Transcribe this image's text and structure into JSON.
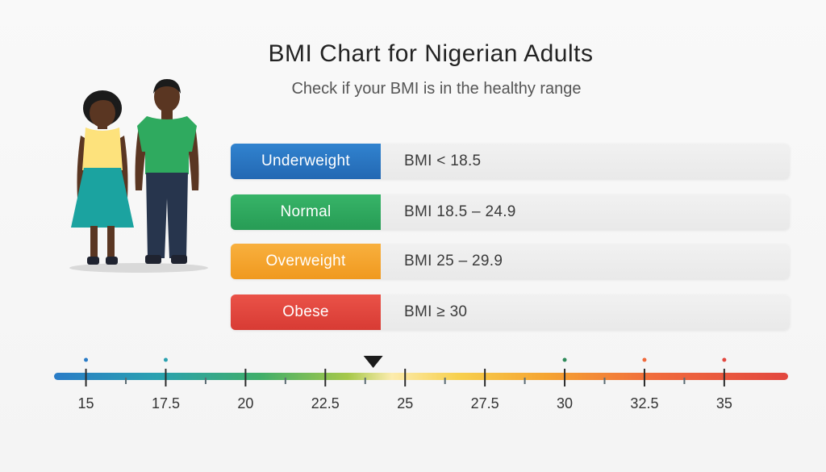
{
  "header": {
    "title": "BMI Chart for Nigerian Adults",
    "subtitle": "Check if your BMI is in the healthy range"
  },
  "categories": [
    {
      "label": "Underweight",
      "range": "BMI < 18.5",
      "color": "#2a72c0"
    },
    {
      "label": "Normal",
      "range": "BMI 18.5 – 24.9",
      "color": "#2faa5f"
    },
    {
      "label": "Overweight",
      "range": "BMI 25 – 29.9",
      "color": "#f5a431"
    },
    {
      "label": "Obese",
      "range": "BMI ≥ 30",
      "color": "#e2473f"
    }
  ],
  "scale": {
    "min": 14,
    "max": 37,
    "marker_value": 24,
    "ticks": [
      {
        "value": 15,
        "label": "15"
      },
      {
        "value": 17.5,
        "label": "17.5"
      },
      {
        "value": 20,
        "label": "20"
      },
      {
        "value": 22.5,
        "label": "22.5"
      },
      {
        "value": 25,
        "label": "25"
      },
      {
        "value": 27.5,
        "label": "27.5"
      },
      {
        "value": 30,
        "label": "30"
      },
      {
        "value": 32.5,
        "label": "32.5"
      },
      {
        "value": 35,
        "label": "35"
      }
    ],
    "colors": [
      "#2a7cc7",
      "#2aa7a4",
      "#3fae6a",
      "#a6c84a",
      "#fbe8a0",
      "#f7d04e",
      "#f5a431",
      "#f06a3c",
      "#e2473f"
    ]
  },
  "illustration": {
    "icons": [
      "woman-figure-icon",
      "man-figure-icon"
    ],
    "colors": {
      "skin": "#5a3622",
      "hair": "#1a1a1a",
      "woman_top": "#fde27c",
      "woman_skirt": "#1aa3a0",
      "man_shirt": "#2faa5f",
      "man_trousers": "#27354d",
      "shoes": "#1f2330",
      "shadow": "#d8d8d8"
    }
  }
}
